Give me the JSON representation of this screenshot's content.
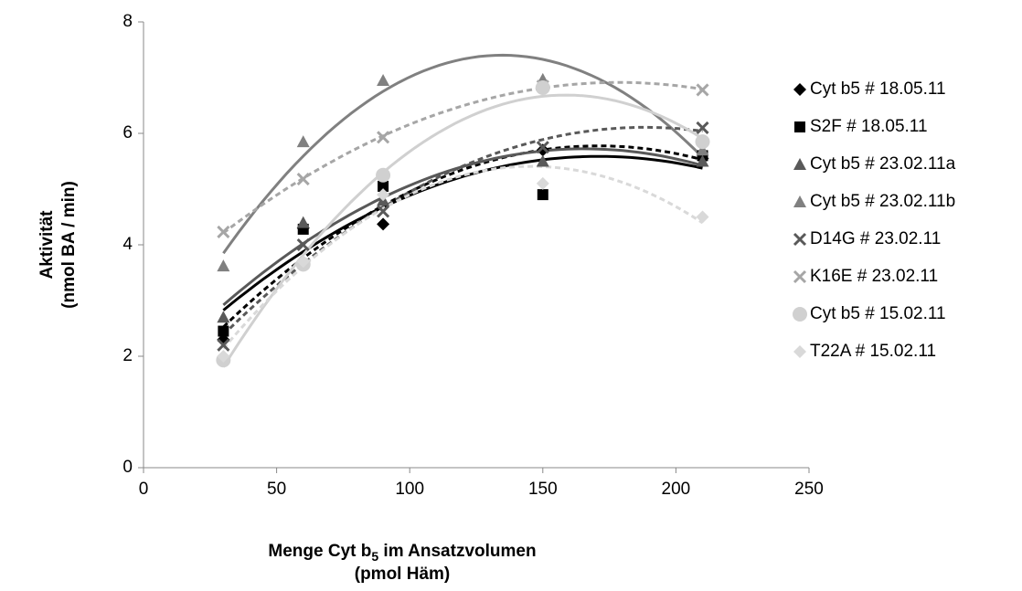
{
  "chart_data": {
    "type": "scatter",
    "trendline": "quadratic",
    "ylabel": [
      "Aktivität",
      "(nmol BA / min)"
    ],
    "xlabel": {
      "main": "Menge Cyt b",
      "sub": "5",
      "rest": " im Ansatzvolumen",
      "line2": "(pmol Häm)"
    },
    "x": [
      30,
      60,
      90,
      150,
      210
    ],
    "xlim": [
      0,
      250
    ],
    "xticks": [
      0,
      50,
      100,
      150,
      200,
      250
    ],
    "ylim": [
      0,
      8
    ],
    "yticks": [
      0,
      2,
      4,
      6,
      8
    ],
    "grid": false,
    "legend": "right",
    "series": [
      {
        "name": "Cyt b5 # 18.05.11",
        "color": "#000000",
        "marker": "diamond",
        "dash": true,
        "values": [
          2.3,
          4.3,
          4.37,
          5.7,
          5.55
        ]
      },
      {
        "name": "S2F # 18.05.11",
        "color": "#000000",
        "marker": "square",
        "dash": false,
        "values": [
          2.45,
          4.28,
          5.05,
          4.9,
          5.6
        ]
      },
      {
        "name": "Cyt b5 # 23.02.11a",
        "color": "#595959",
        "marker": "triangle",
        "dash": false,
        "values": [
          2.7,
          4.4,
          4.8,
          5.5,
          5.5
        ]
      },
      {
        "name": "Cyt b5 # 23.02.11b",
        "color": "#808080",
        "marker": "triangle",
        "dash": false,
        "values": [
          3.62,
          5.85,
          6.95,
          6.97,
          5.7
        ]
      },
      {
        "name": "D14G # 23.02.11",
        "color": "#595959",
        "marker": "x",
        "dash": true,
        "values": [
          2.2,
          4.0,
          4.6,
          5.75,
          6.1
        ]
      },
      {
        "name": "K16E # 23.02.11",
        "color": "#a6a6a6",
        "marker": "x",
        "dash": true,
        "values": [
          4.23,
          5.18,
          5.93,
          6.85,
          6.78
        ]
      },
      {
        "name": "Cyt b5 # 15.02.11",
        "color": "#d0d0d0",
        "marker": "circle",
        "dash": false,
        "values": [
          1.93,
          3.65,
          5.25,
          6.82,
          5.85
        ]
      },
      {
        "name": "T22A # 15.02.11",
        "color": "#d9d9d9",
        "marker": "diamond",
        "dash": true,
        "values": [
          2.0,
          3.7,
          4.9,
          5.1,
          4.5
        ]
      }
    ]
  }
}
